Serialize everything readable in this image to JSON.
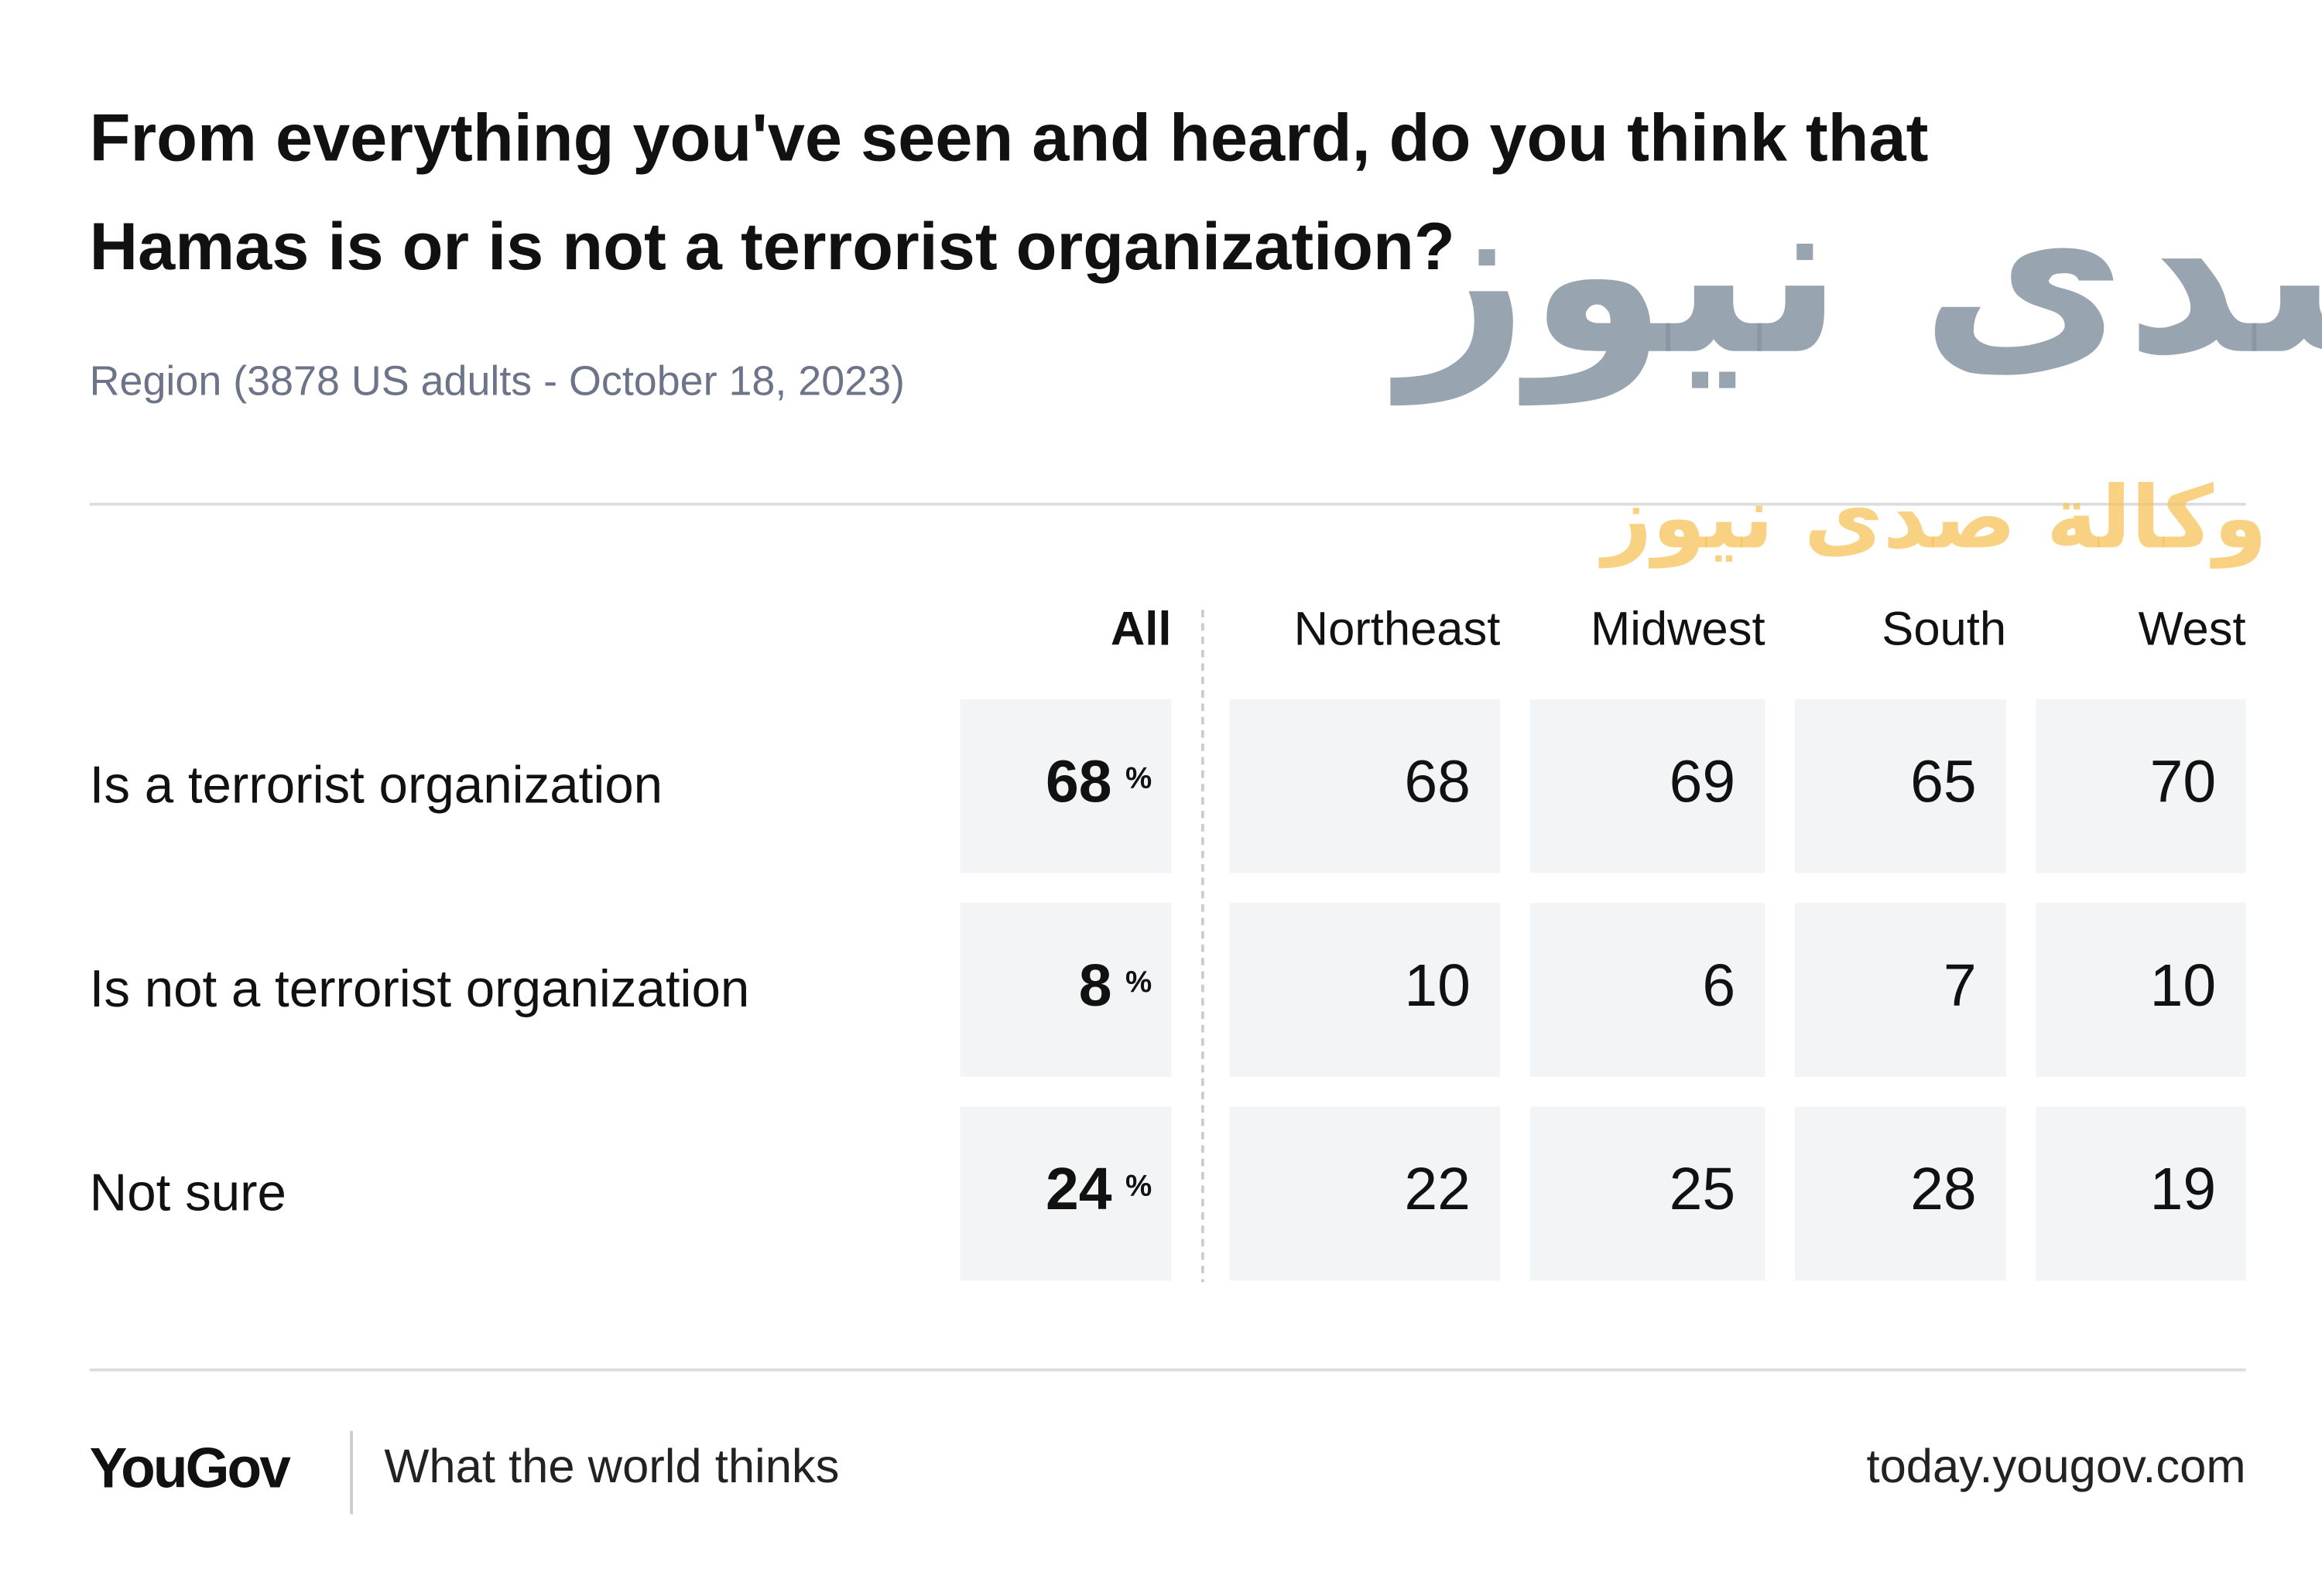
{
  "header": {
    "title_lines": [
      "From everything you've seen and heard, do you think that",
      "Hamas is or is not a terrorist organization?"
    ],
    "subtitle": "Region (3878 US adults - October 18, 2023)"
  },
  "table": {
    "columns": [
      "All",
      "Northeast",
      "Midwest",
      "South",
      "West"
    ],
    "unit": "%",
    "rows": [
      {
        "label": "Is a terrorist organization",
        "values": [
          68,
          68,
          69,
          65,
          70
        ]
      },
      {
        "label": "Is not a terrorist organization",
        "values": [
          8,
          10,
          6,
          7,
          10
        ]
      },
      {
        "label": "Not sure",
        "values": [
          24,
          22,
          25,
          28,
          19
        ]
      }
    ]
  },
  "footer": {
    "brand": "YouGov",
    "tagline": "What the world thinks",
    "url": "today.yougov.com"
  },
  "watermark": {
    "logo": "صدى نيوز",
    "caption": "وكالة صدى نيوز"
  }
}
